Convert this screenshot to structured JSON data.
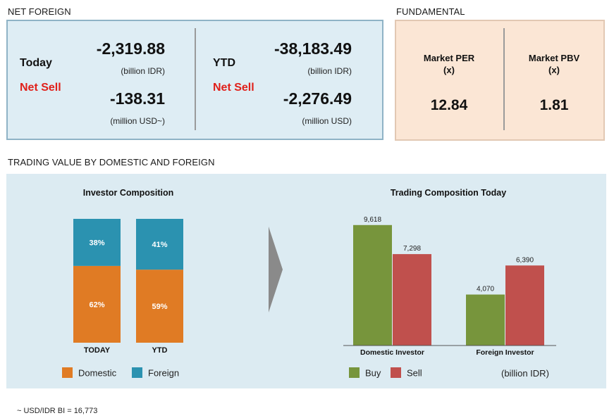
{
  "net_foreign": {
    "section_title": "NET FOREIGN",
    "today": {
      "label": "Today",
      "status": "Net Sell",
      "idr_value": "-2,319.88",
      "idr_unit": "(billion IDR)",
      "usd_value": "-138.31",
      "usd_unit": "(million USD~)"
    },
    "ytd": {
      "label": "YTD",
      "status": "Net Sell",
      "idr_value": "-38,183.49",
      "idr_unit": "(billion IDR)",
      "usd_value": "-2,276.49",
      "usd_unit": "(million USD)"
    }
  },
  "fundamental": {
    "section_title": "FUNDAMENTAL",
    "per_label_1": "Market PER",
    "per_label_2": "(x)",
    "per_value": "12.84",
    "pbv_label_1": "Market PBV",
    "pbv_label_2": "(x)",
    "pbv_value": "1.81"
  },
  "trading": {
    "section_title": "TRADING VALUE BY DOMESTIC AND FOREIGN",
    "unit_note": "(billion IDR)"
  },
  "footnote": "~ USD/IDR BI = 16,773",
  "colors": {
    "domestic": "#e07b24",
    "foreign": "#2b92b0",
    "buy": "#77953c",
    "sell": "#c0504d",
    "arrow": "#8a8a8a"
  },
  "chart_data": [
    {
      "type": "bar",
      "stacked": true,
      "percent": true,
      "title": "Investor Composition",
      "categories": [
        "TODAY",
        "YTD"
      ],
      "series": [
        {
          "name": "Domestic",
          "values": [
            62,
            59
          ],
          "labels": [
            "62%",
            "59%"
          ]
        },
        {
          "name": "Foreign",
          "values": [
            38,
            41
          ],
          "labels": [
            "38%",
            "41%"
          ]
        }
      ],
      "ylim": [
        0,
        100
      ],
      "legend": "bottom",
      "grid": false
    },
    {
      "type": "bar",
      "title": "Trading Composition Today",
      "categories": [
        "Domestic Investor",
        "Foreign Investor"
      ],
      "series": [
        {
          "name": "Buy",
          "values": [
            9618,
            4070
          ],
          "labels": [
            "9,618",
            "4,070"
          ]
        },
        {
          "name": "Sell",
          "values": [
            7298,
            6390
          ],
          "labels": [
            "7,298",
            "6,390"
          ]
        }
      ],
      "ylim": [
        0,
        10000
      ],
      "legend": "bottom",
      "grid": false
    }
  ]
}
